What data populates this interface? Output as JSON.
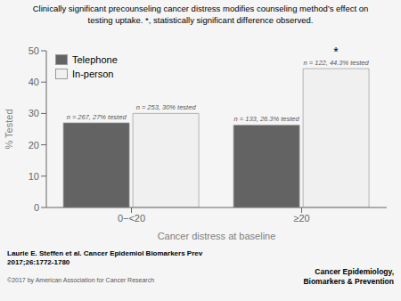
{
  "chart_data": {
    "type": "bar",
    "title": "Clinically significant precounseling cancer distress modifies counseling method’s effect on\ntesting uptake. *, statistically significant difference observed.",
    "x_label": "Cancer distress at baseline",
    "y_label": "% Tested",
    "categories": [
      "0−<20",
      "≥20"
    ],
    "series": [
      {
        "name": "Telephone",
        "color": "#636363",
        "values": [
          27,
          26.3
        ],
        "value_labels": [
          "n = 267, 27% tested",
          "n = 133, 26.3% tested"
        ]
      },
      {
        "name": "In-person",
        "color": "#f0f0f0",
        "values": [
          30,
          44.3
        ],
        "value_labels": [
          "n = 253, 30% tested",
          "n = 122, 44.3% tested"
        ]
      }
    ],
    "data_labels": true,
    "ylim": [
      0,
      50
    ],
    "yticks": [
      0,
      10,
      20,
      30,
      40,
      50
    ],
    "grid": false,
    "legend": "upper left",
    "annotations": [
      {
        "text": "*",
        "category": "≥20",
        "series": "In-person"
      },
      {
        "text": "Laurie E. Steffen et al. Cancer Epidemiol Biomarkers Prev\n2017;26:1772-1780"
      },
      {
        "text": "©2017 by American Association for Cancer Research"
      },
      {
        "text": "Cancer Epidemiology,\nBiomarkers & Prevention"
      }
    ]
  }
}
